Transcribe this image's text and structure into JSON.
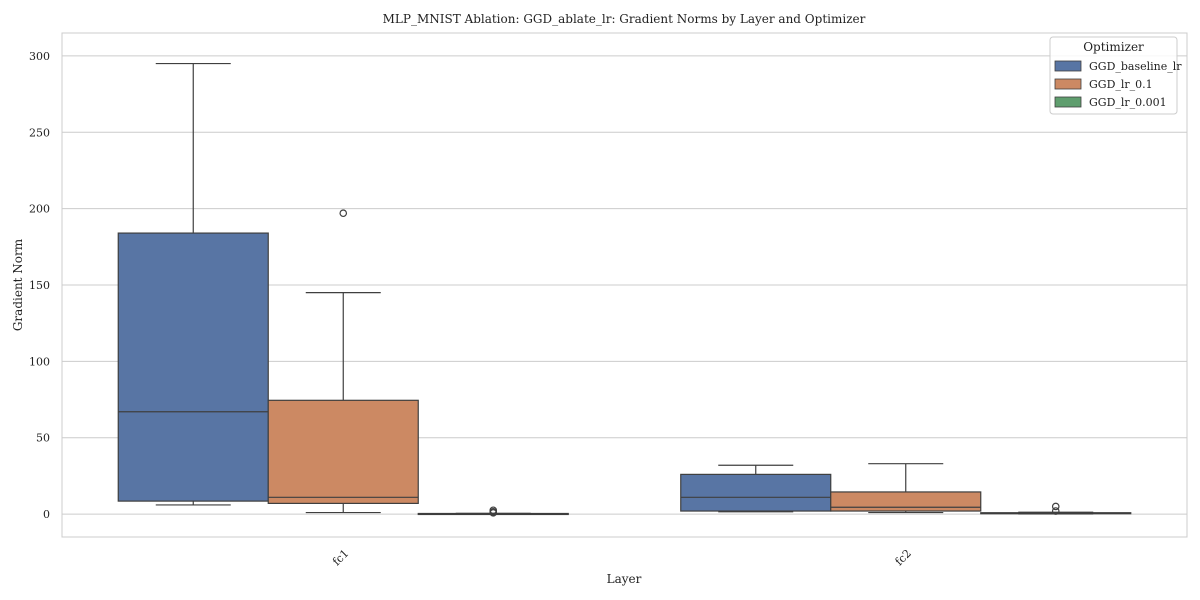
{
  "chart_data": {
    "type": "box",
    "title": "MLP_MNIST Ablation: GGD_ablate_lr: Gradient Norms by Layer and Optimizer",
    "xlabel": "Layer",
    "ylabel": "Gradient Norm",
    "categories": [
      "fc1",
      "fc2"
    ],
    "ylim": [
      -15,
      315
    ],
    "yticks": [
      0,
      50,
      100,
      150,
      200,
      250,
      300
    ],
    "grid": true,
    "legend": {
      "title": "Optimizer",
      "position": "top-right"
    },
    "series": [
      {
        "name": "GGD_baseline_lr",
        "color": "#5875a4",
        "boxes": [
          {
            "category": "fc1",
            "min": 6,
            "q1": 8.5,
            "median": 67,
            "q3": 184,
            "max": 295,
            "outliers": []
          },
          {
            "category": "fc2",
            "min": 1.5,
            "q1": 2,
            "median": 11,
            "q3": 26,
            "max": 32,
            "outliers": []
          }
        ]
      },
      {
        "name": "GGD_lr_0.1",
        "color": "#cc8963",
        "boxes": [
          {
            "category": "fc1",
            "min": 1,
            "q1": 7,
            "median": 11,
            "q3": 74.5,
            "max": 145,
            "outliers": [
              197
            ]
          },
          {
            "category": "fc2",
            "min": 1,
            "q1": 2,
            "median": 4.5,
            "q3": 14.5,
            "max": 33,
            "outliers": []
          }
        ]
      },
      {
        "name": "GGD_lr_0.001",
        "color": "#5f9e6e",
        "boxes": [
          {
            "category": "fc1",
            "min": 0,
            "q1": 0.1,
            "median": 0.2,
            "q3": 0.4,
            "max": 0.5,
            "outliers": [
              0.8,
              1.5,
              2.5
            ]
          },
          {
            "category": "fc2",
            "min": 0.1,
            "q1": 0.3,
            "median": 0.5,
            "q3": 0.9,
            "max": 1.2,
            "outliers": [
              2,
              5
            ]
          }
        ]
      }
    ]
  }
}
